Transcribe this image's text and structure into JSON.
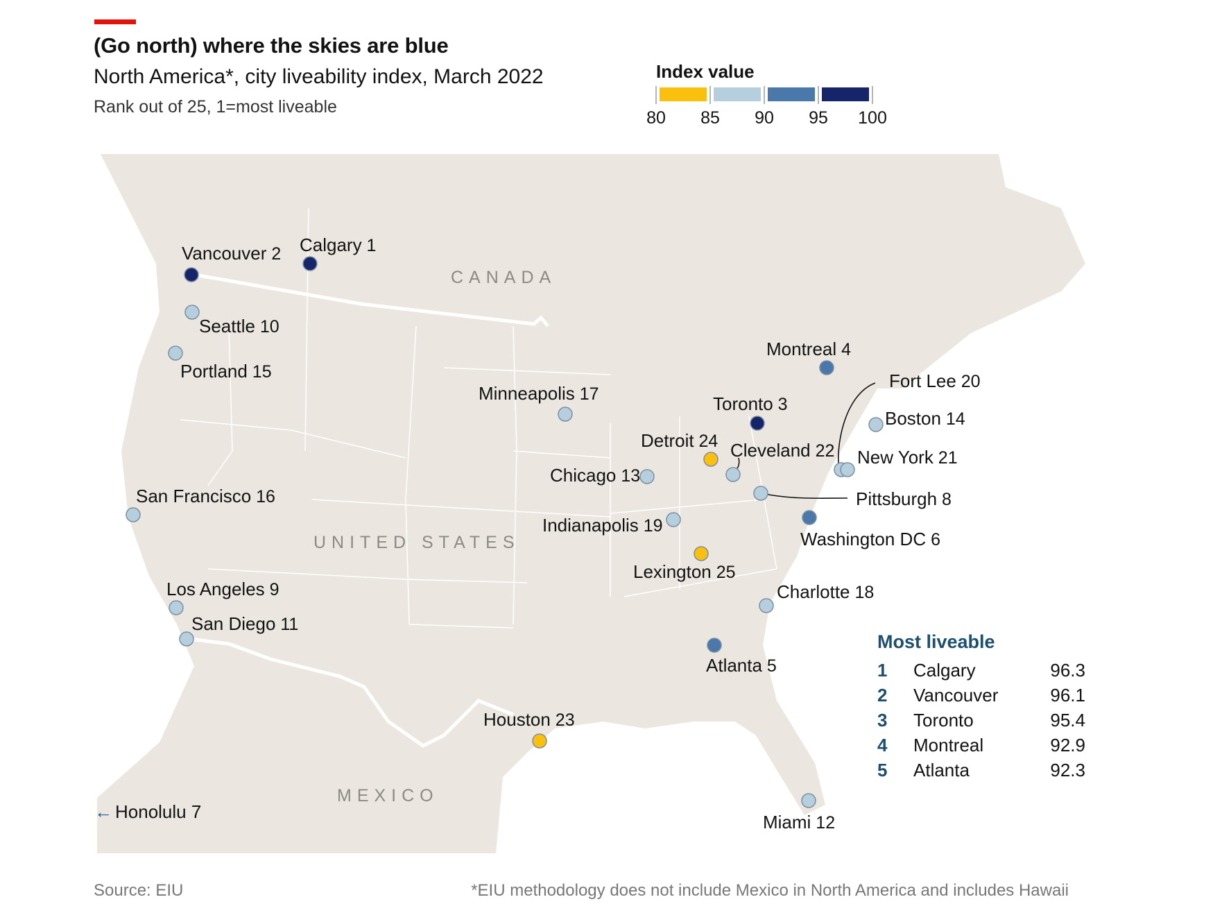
{
  "header": {
    "title": "(Go north) where the skies are blue",
    "subtitle": "North America*, city liveability index, March 2022",
    "note": "Rank out of 25, 1=most liveable"
  },
  "legend": {
    "title": "Index value",
    "bins": [
      {
        "from": 80,
        "to": 85,
        "color": "#fbbf0e"
      },
      {
        "from": 85,
        "to": 90,
        "color": "#b6cfdf"
      },
      {
        "from": 90,
        "to": 95,
        "color": "#4b78aa"
      },
      {
        "from": 95,
        "to": 100,
        "color": "#16256a"
      }
    ],
    "ticks": [
      "80",
      "85",
      "90",
      "95",
      "100"
    ]
  },
  "regions": [
    "CANADA",
    "UNITED STATES",
    "MEXICO"
  ],
  "cities": [
    {
      "name": "Calgary",
      "rank": "1",
      "color": "#16256a"
    },
    {
      "name": "Vancouver",
      "rank": "2",
      "color": "#16256a"
    },
    {
      "name": "Toronto",
      "rank": "3",
      "color": "#16256a"
    },
    {
      "name": "Montreal",
      "rank": "4",
      "color": "#4b78aa"
    },
    {
      "name": "Atlanta",
      "rank": "5",
      "color": "#4b78aa"
    },
    {
      "name": "Washington DC",
      "rank": "6",
      "color": "#4b78aa"
    },
    {
      "name": "Pittsburgh",
      "rank": "8",
      "color": "#b6cfdf"
    },
    {
      "name": "Los Angeles",
      "rank": "9",
      "color": "#b6cfdf"
    },
    {
      "name": "Seattle",
      "rank": "10",
      "color": "#b6cfdf"
    },
    {
      "name": "San Diego",
      "rank": "11",
      "color": "#b6cfdf"
    },
    {
      "name": "Miami",
      "rank": "12",
      "color": "#b6cfdf"
    },
    {
      "name": "Chicago",
      "rank": "13",
      "color": "#b6cfdf"
    },
    {
      "name": "Boston",
      "rank": "14",
      "color": "#b6cfdf"
    },
    {
      "name": "Portland",
      "rank": "15",
      "color": "#b6cfdf"
    },
    {
      "name": "San Francisco",
      "rank": "16",
      "color": "#b6cfdf"
    },
    {
      "name": "Minneapolis",
      "rank": "17",
      "color": "#b6cfdf"
    },
    {
      "name": "Charlotte",
      "rank": "18",
      "color": "#b6cfdf"
    },
    {
      "name": "Indianapolis",
      "rank": "19",
      "color": "#b6cfdf"
    },
    {
      "name": "Fort Lee",
      "rank": "20",
      "color": "#b6cfdf"
    },
    {
      "name": "New York",
      "rank": "21",
      "color": "#b6cfdf"
    },
    {
      "name": "Cleveland",
      "rank": "22",
      "color": "#b6cfdf"
    },
    {
      "name": "Houston",
      "rank": "23",
      "color": "#fbbf0e"
    },
    {
      "name": "Detroit",
      "rank": "24",
      "color": "#fbbf0e"
    },
    {
      "name": "Lexington",
      "rank": "25",
      "color": "#fbbf0e"
    }
  ],
  "offmap": {
    "arrow": "←",
    "name": "Honolulu",
    "rank": "7"
  },
  "top5": {
    "title": "Most liveable",
    "rows": [
      {
        "rank": "1",
        "city": "Calgary",
        "value": "96.3"
      },
      {
        "rank": "2",
        "city": "Vancouver",
        "value": "96.1"
      },
      {
        "rank": "3",
        "city": "Toronto",
        "value": "95.4"
      },
      {
        "rank": "4",
        "city": "Montreal",
        "value": "92.9"
      },
      {
        "rank": "5",
        "city": "Atlanta",
        "value": "92.3"
      }
    ]
  },
  "footer": {
    "source": "Source: EIU",
    "footnote": "*EIU methodology does not include Mexico in North America and includes Hawaii"
  },
  "colors": {
    "land": "#ebe7e0",
    "border": "#ffffff",
    "accent": "#e3120b",
    "table_rank": "#1d4f6e"
  }
}
